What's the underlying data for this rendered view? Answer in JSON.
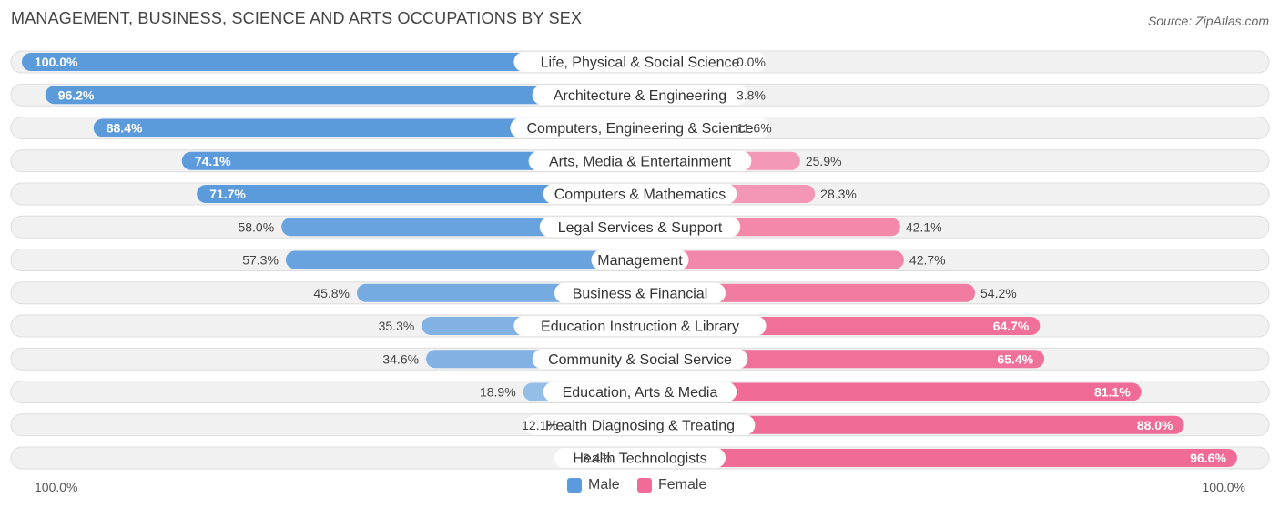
{
  "chart_data": {
    "type": "bar",
    "orientation": "horizontal-diverging",
    "title": "MANAGEMENT, BUSINESS, SCIENCE AND ARTS OCCUPATIONS BY SEX",
    "source": "Source: ZipAtlas.com",
    "categories": [
      "Life, Physical & Social Science",
      "Architecture & Engineering",
      "Computers, Engineering & Science",
      "Arts, Media & Entertainment",
      "Computers & Mathematics",
      "Legal Services & Support",
      "Management",
      "Business & Financial",
      "Education Instruction & Library",
      "Community & Social Service",
      "Education, Arts & Media",
      "Health Diagnosing & Treating",
      "Health Technologists"
    ],
    "series": [
      {
        "name": "Male",
        "color": "#5b9bdc",
        "values": [
          100.0,
          96.2,
          88.4,
          74.1,
          71.7,
          58.0,
          57.3,
          45.8,
          35.3,
          34.6,
          18.9,
          12.1,
          3.4
        ],
        "labels": [
          "100.0%",
          "96.2%",
          "88.4%",
          "74.1%",
          "71.7%",
          "58.0%",
          "57.3%",
          "45.8%",
          "35.3%",
          "34.6%",
          "18.9%",
          "12.1%",
          "3.4%"
        ]
      },
      {
        "name": "Female",
        "color": "#f06b96",
        "values": [
          0.0,
          3.8,
          11.6,
          25.9,
          28.3,
          42.1,
          42.7,
          54.2,
          64.7,
          65.4,
          81.1,
          88.0,
          96.6
        ],
        "labels": [
          "0.0%",
          "3.8%",
          "11.6%",
          "25.9%",
          "28.3%",
          "42.1%",
          "42.7%",
          "54.2%",
          "64.7%",
          "65.4%",
          "81.1%",
          "88.0%",
          "96.6%"
        ]
      }
    ],
    "axis": {
      "left_label": "100.0%",
      "right_label": "100.0%",
      "range": [
        0,
        100
      ]
    },
    "legend": [
      "Male",
      "Female"
    ],
    "legend_position": "bottom-center"
  }
}
